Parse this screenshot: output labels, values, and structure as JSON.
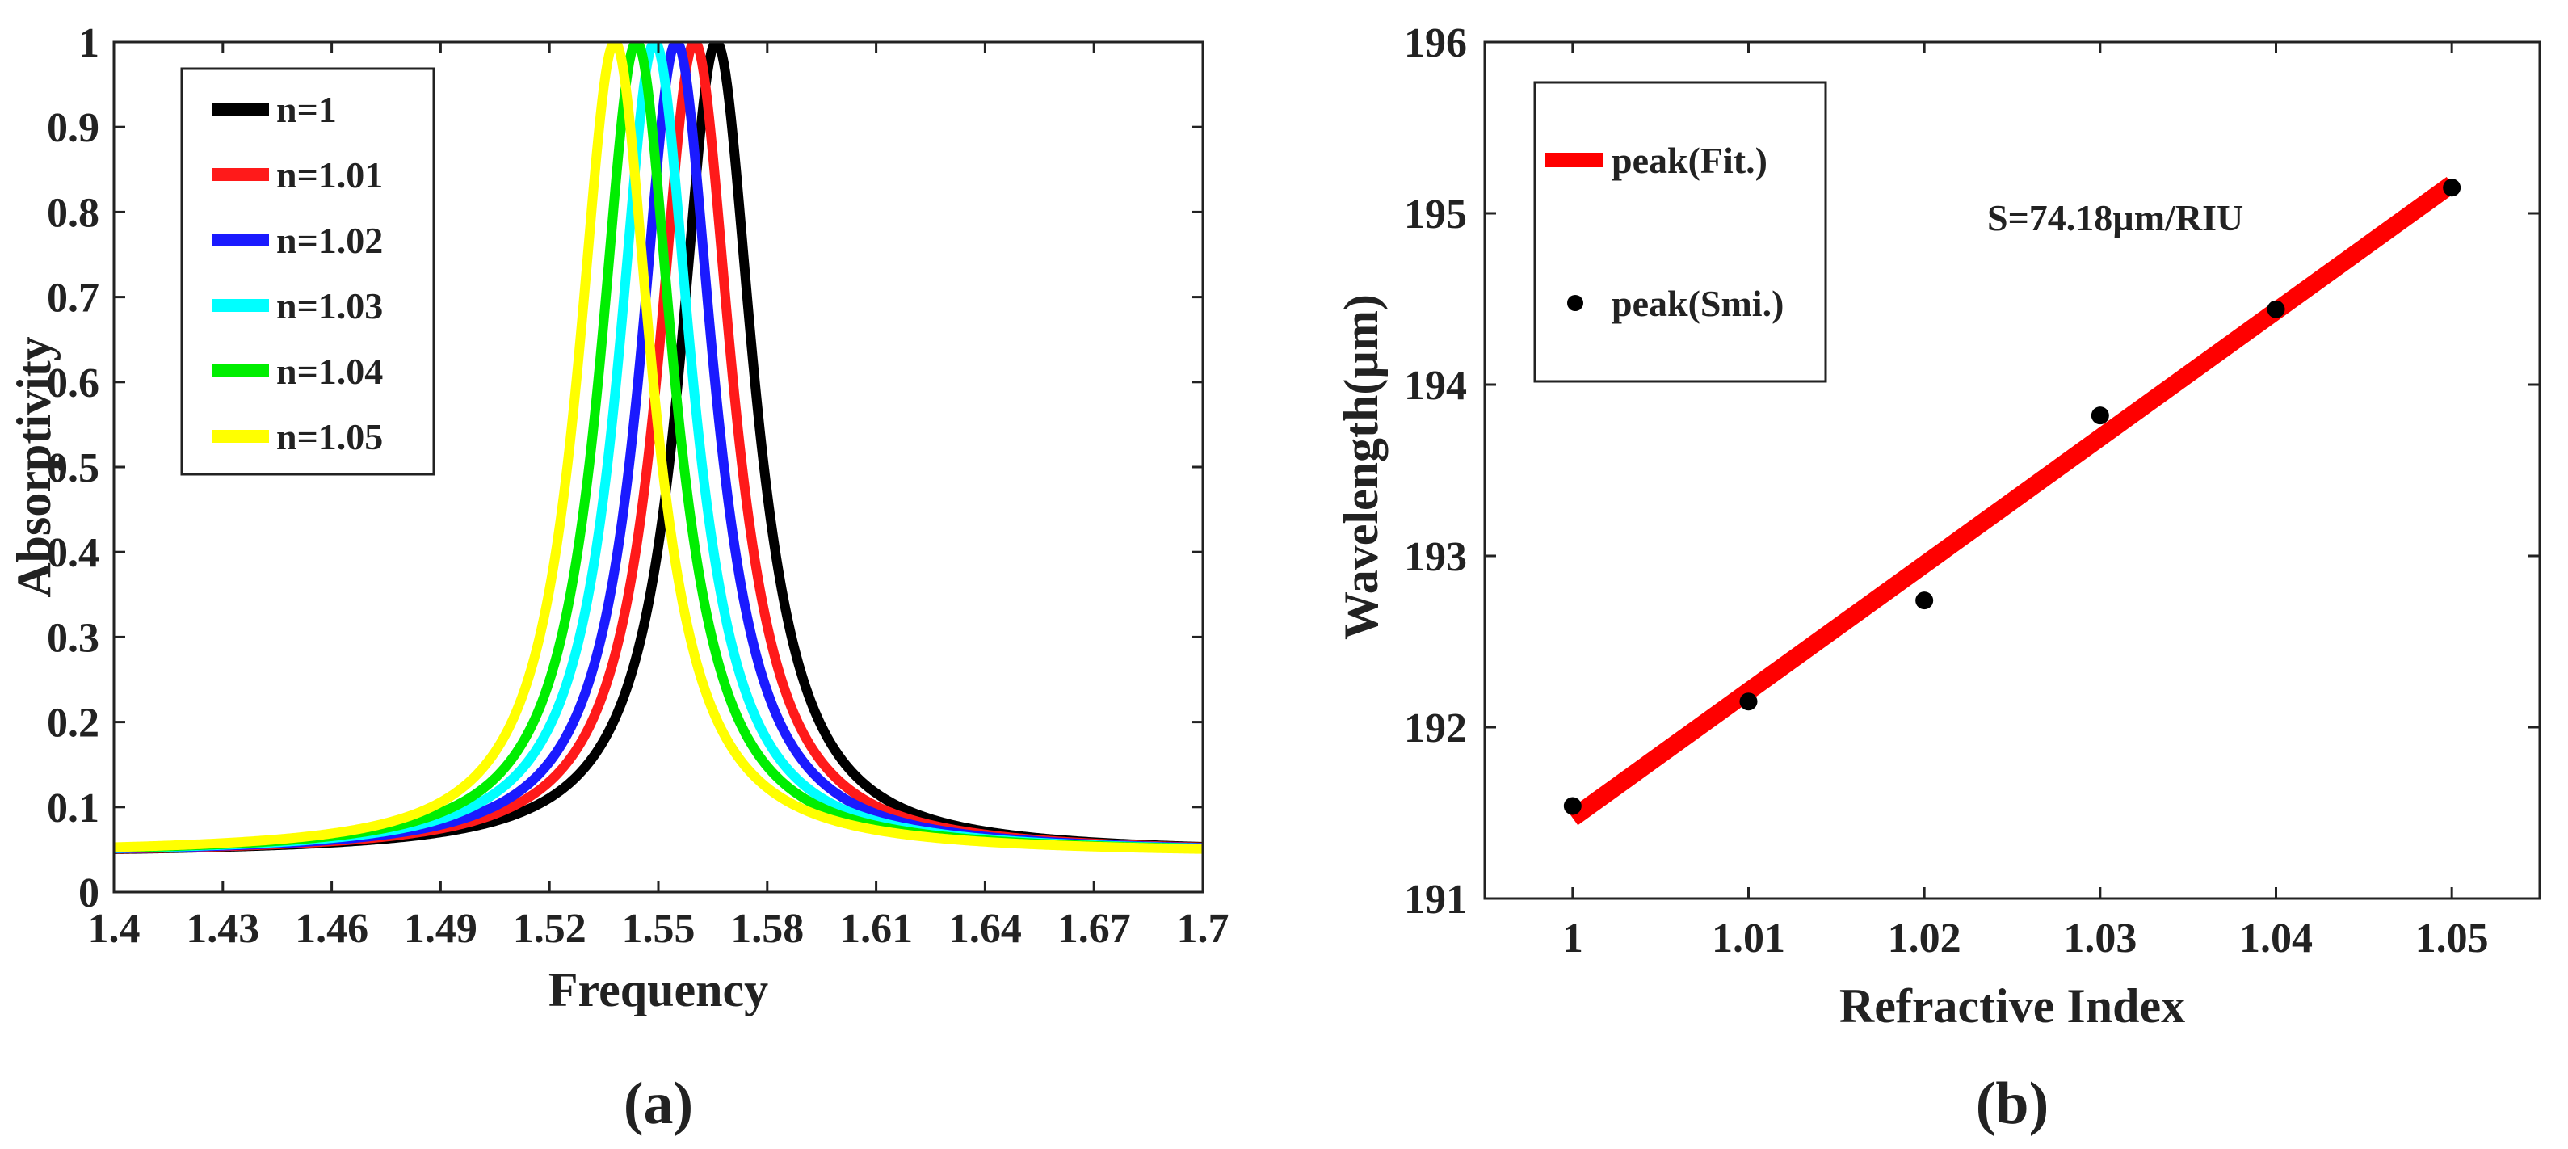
{
  "chart_data": [
    {
      "type": "line",
      "panel_label": "(a)",
      "xlabel": "Frequency",
      "ylabel": "Absorptivity",
      "xlim": [
        1.4,
        1.7
      ],
      "ylim": [
        0,
        1
      ],
      "x_ticks": [
        1.4,
        1.43,
        1.46,
        1.49,
        1.52,
        1.55,
        1.58,
        1.61,
        1.64,
        1.67,
        1.7
      ],
      "x_tick_labels": [
        "1.4",
        "1.43",
        "1.46",
        "1.49",
        "1.52",
        "1.55",
        "1.58",
        "1.61",
        "1.64",
        "1.67",
        "1.7"
      ],
      "y_ticks": [
        0,
        0.1,
        0.2,
        0.3,
        0.4,
        0.5,
        0.6,
        0.7,
        0.8,
        0.9,
        1
      ],
      "y_tick_labels": [
        "0",
        "0.1",
        "0.2",
        "0.3",
        "0.4",
        "0.5",
        "0.6",
        "0.7",
        "0.8",
        "0.9",
        "1"
      ],
      "legend_position": "top-left",
      "series": [
        {
          "name": "n=1",
          "color": "#000000",
          "peak_x": 1.566,
          "peak_y": 1.0,
          "hwhm": 0.0125,
          "tail_y": 0.045
        },
        {
          "name": "n=1.01",
          "color": "#ff1a1a",
          "peak_x": 1.56,
          "peak_y": 1.0,
          "hwhm": 0.0125,
          "tail_y": 0.045
        },
        {
          "name": "n=1.02",
          "color": "#1a1aff",
          "peak_x": 1.555,
          "peak_y": 1.0,
          "hwhm": 0.0125,
          "tail_y": 0.045
        },
        {
          "name": "n=1.03",
          "color": "#00ffff",
          "peak_x": 1.549,
          "peak_y": 1.0,
          "hwhm": 0.0125,
          "tail_y": 0.045
        },
        {
          "name": "n=1.04",
          "color": "#00ee00",
          "peak_x": 1.544,
          "peak_y": 1.0,
          "hwhm": 0.0125,
          "tail_y": 0.045
        },
        {
          "name": "n=1.05",
          "color": "#ffff00",
          "peak_x": 1.538,
          "peak_y": 1.0,
          "hwhm": 0.0125,
          "tail_y": 0.045
        }
      ]
    },
    {
      "type": "scatter",
      "panel_label": "(b)",
      "xlabel": "Refractive Index",
      "ylabel": "Wavelength(µm)",
      "xlim": [
        0.995,
        1.055
      ],
      "ylim": [
        191,
        196
      ],
      "x_ticks": [
        1,
        1.01,
        1.02,
        1.03,
        1.04,
        1.05
      ],
      "x_tick_labels": [
        "1",
        "1.01",
        "1.02",
        "1.03",
        "1.04",
        "1.05"
      ],
      "y_ticks": [
        191,
        192,
        193,
        194,
        195,
        196
      ],
      "y_tick_labels": [
        "191",
        "192",
        "193",
        "194",
        "195",
        "196"
      ],
      "legend_position": "top-left",
      "annotation": "S=74.18µm/RIU",
      "fit": {
        "name": "peak(Fit.)",
        "color": "#ff0000",
        "x": [
          1.0,
          1.05
        ],
        "y": [
          191.47,
          195.17
        ]
      },
      "points": {
        "name": "peak(Smi.)",
        "color": "#000000",
        "x": [
          1.0,
          1.01,
          1.02,
          1.03,
          1.04,
          1.05
        ],
        "y": [
          191.54,
          192.15,
          192.74,
          193.82,
          194.44,
          195.15
        ]
      }
    }
  ]
}
